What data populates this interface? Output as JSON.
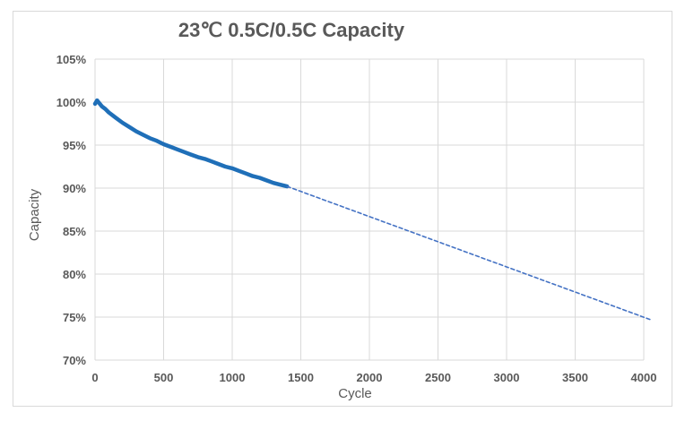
{
  "chart_data": {
    "type": "line",
    "title": "23℃ 0.5C/0.5C Capacity",
    "xlabel": "Cycle",
    "ylabel": "Capacity",
    "xlim": [
      0,
      4000
    ],
    "ylim": [
      70,
      105
    ],
    "x_ticks": [
      0,
      500,
      1000,
      1500,
      2000,
      2500,
      3000,
      3500,
      4000
    ],
    "y_ticks": [
      70,
      75,
      80,
      85,
      90,
      95,
      100,
      105
    ],
    "y_tick_labels": [
      "70%",
      "75%",
      "80%",
      "85%",
      "90%",
      "95%",
      "100%",
      "105%"
    ],
    "grid": true,
    "legend": "none",
    "series": [
      {
        "style": "solid-thick",
        "color": "#1f6fb8",
        "points": [
          [
            0,
            99.8
          ],
          [
            15,
            100.2
          ],
          [
            30,
            99.9
          ],
          [
            50,
            99.5
          ],
          [
            75,
            99.2
          ],
          [
            100,
            98.8
          ],
          [
            150,
            98.2
          ],
          [
            200,
            97.6
          ],
          [
            250,
            97.1
          ],
          [
            300,
            96.6
          ],
          [
            350,
            96.2
          ],
          [
            400,
            95.8
          ],
          [
            450,
            95.5
          ],
          [
            500,
            95.1
          ],
          [
            550,
            94.8
          ],
          [
            600,
            94.5
          ],
          [
            650,
            94.2
          ],
          [
            700,
            93.9
          ],
          [
            750,
            93.6
          ],
          [
            800,
            93.4
          ],
          [
            850,
            93.1
          ],
          [
            900,
            92.8
          ],
          [
            950,
            92.5
          ],
          [
            1000,
            92.3
          ],
          [
            1050,
            92.0
          ],
          [
            1100,
            91.7
          ],
          [
            1150,
            91.4
          ],
          [
            1200,
            91.2
          ],
          [
            1250,
            90.9
          ],
          [
            1300,
            90.6
          ],
          [
            1350,
            90.4
          ],
          [
            1400,
            90.2
          ]
        ]
      },
      {
        "style": "dashed",
        "color": "#4472c4",
        "points": [
          [
            1400,
            90.2
          ],
          [
            4050,
            74.7
          ]
        ]
      }
    ]
  }
}
